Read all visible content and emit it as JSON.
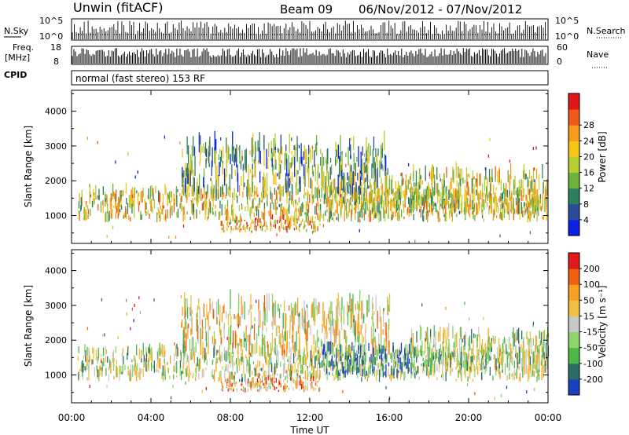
{
  "header": {
    "station": "Unwin (fitACF)",
    "beam": "Beam 09",
    "dates": "06/Nov/2012 - 07/Nov/2012"
  },
  "meta_panels": {
    "nsky_label": "N.Sky",
    "nsky_ticks_left": [
      "10^5",
      "10^0"
    ],
    "nsearch_label": "N.Search",
    "nsearch_ticks_right": [
      "10^5",
      "10^0"
    ],
    "freq_label_1": "Freq.",
    "freq_label_2": "[MHz]",
    "freq_ticks": [
      "18",
      "8"
    ],
    "nave_label": "Nave",
    "nave_ticks": [
      "60",
      "0"
    ],
    "cpid_label": "CPID",
    "cpid_text": "normal (fast stereo) 153 RF"
  },
  "chart_data": [
    {
      "type": "heatmap",
      "name": "power-panel",
      "ylabel": "Slant Range [km]",
      "yticks": [
        1000,
        2000,
        3000,
        4000
      ],
      "ylim": [
        200,
        4600
      ],
      "xlim_hours": [
        0,
        24
      ],
      "colorbar_label": "Power [dB]",
      "colorbar_ticks": [
        "4",
        "8",
        "12",
        "16",
        "20",
        "24",
        "28"
      ],
      "colorbar_colors": [
        "#0a1fe8",
        "#2a4a9c",
        "#2f7f5f",
        "#6db23a",
        "#b8cc33",
        "#f5c518",
        "#f59a1a",
        "#ee5a1c",
        "#e01717"
      ],
      "bands": [
        {
          "t0": 0.3,
          "t1": 24,
          "r0": 800,
          "r1": 1650,
          "level": 0.55
        },
        {
          "t0": 7.5,
          "t1": 12.5,
          "r0": 500,
          "r1": 900,
          "level": 0.7
        },
        {
          "t0": 5.5,
          "t1": 16,
          "r0": 1500,
          "r1": 2900,
          "level": 0.35
        },
        {
          "t0": 17,
          "t1": 24,
          "r0": 1000,
          "r1": 2100,
          "level": 0.55
        },
        {
          "t0": 12.5,
          "t1": 17.5,
          "r0": 900,
          "r1": 1900,
          "level": 0.5
        }
      ]
    },
    {
      "type": "heatmap",
      "name": "velocity-panel",
      "ylabel": "Slant Range [km]",
      "yticks": [
        1000,
        2000,
        3000,
        4000
      ],
      "ylim": [
        200,
        4600
      ],
      "xlim_hours": [
        0,
        24
      ],
      "xticks": [
        "00:00",
        "04:00",
        "08:00",
        "12:00",
        "16:00",
        "20:00",
        "00:00"
      ],
      "xlabel": "Time UT",
      "colorbar_label": "Velocity [m s⁻¹]",
      "colorbar_ticks": [
        "200",
        "100",
        "50",
        "15",
        "-15",
        "-50",
        "-100",
        "-200"
      ],
      "colorbar_colors": [
        "#1a3fbf",
        "#2c6e66",
        "#4cb84a",
        "#8fd46b",
        "#c8c8c8",
        "#f0c040",
        "#f5a020",
        "#f06010",
        "#e01a1a"
      ],
      "bands": [
        {
          "t0": 0.3,
          "t1": 24,
          "r0": 800,
          "r1": 1650,
          "level": 0.45
        },
        {
          "t0": 7.5,
          "t1": 12.5,
          "r0": 500,
          "r1": 900,
          "level": 0.7
        },
        {
          "t0": 5.5,
          "t1": 16,
          "r0": 1500,
          "r1": 2900,
          "level": 0.55
        },
        {
          "t0": 12.5,
          "t1": 17.5,
          "r0": 900,
          "r1": 1700,
          "level": 0.2
        },
        {
          "t0": 17,
          "t1": 24,
          "r0": 1000,
          "r1": 2100,
          "level": 0.45
        }
      ]
    }
  ]
}
